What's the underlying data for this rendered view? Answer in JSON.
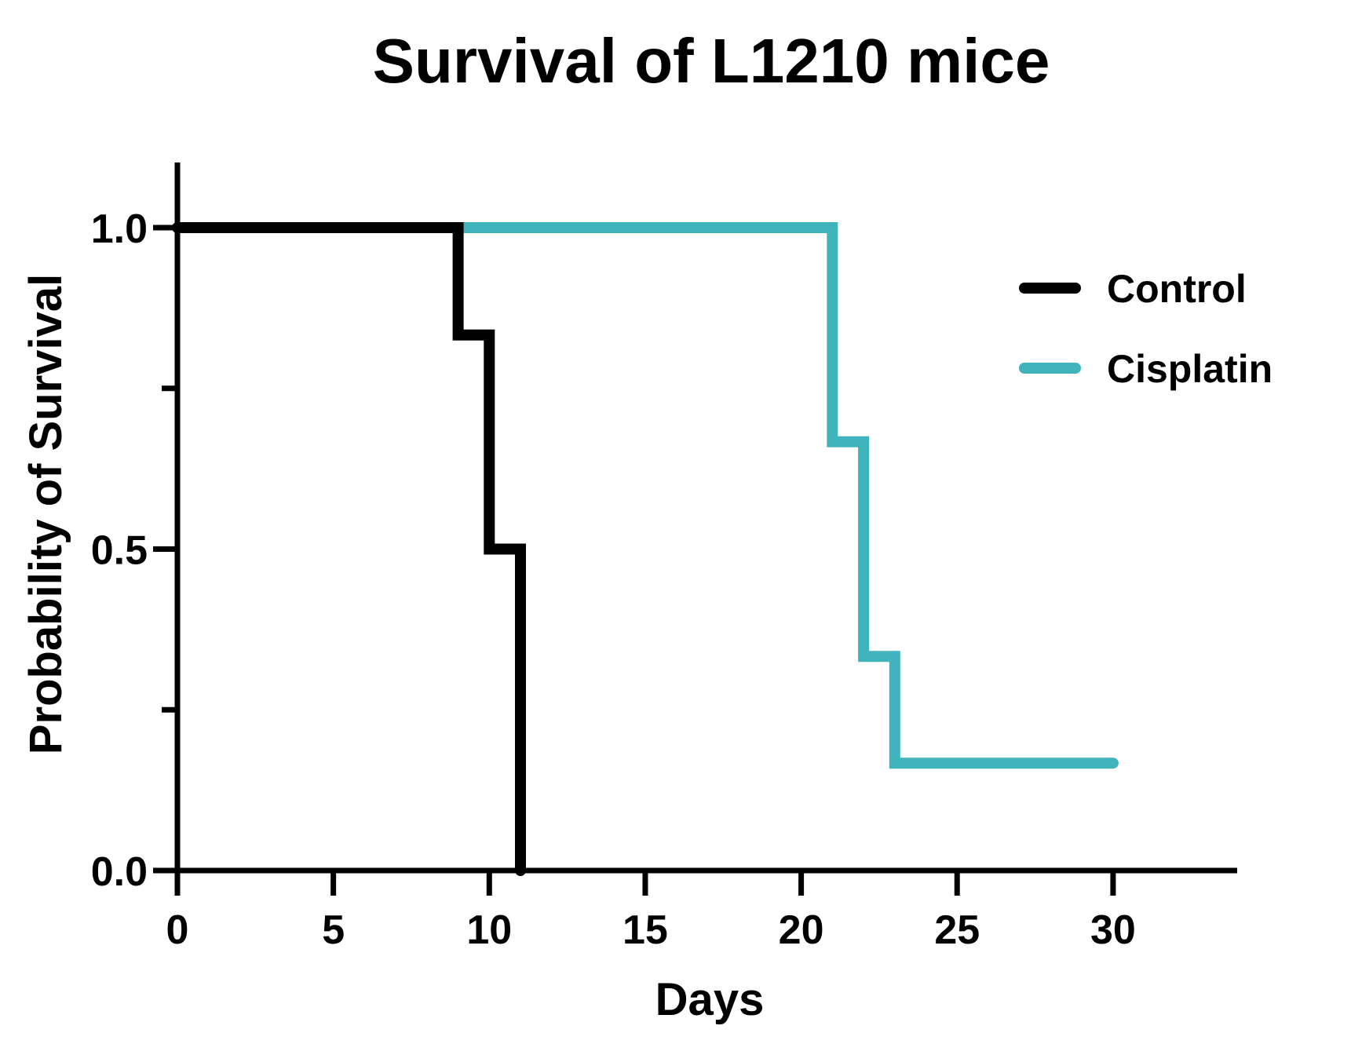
{
  "chart_data": {
    "type": "line",
    "subtype": "kaplan-meier-step",
    "title": "Survival of L1210 mice",
    "xlabel": "Days",
    "ylabel": "Probability of Survival",
    "xlim": [
      0,
      34
    ],
    "ylim": [
      0,
      1.1
    ],
    "x_ticks": [
      0,
      5,
      10,
      15,
      20,
      25,
      30
    ],
    "x_tick_labels": [
      "0",
      "5",
      "10",
      "15",
      "20",
      "25",
      "30"
    ],
    "y_ticks_major": [
      0.0,
      0.5,
      1.0
    ],
    "y_tick_labels": [
      "0.0",
      "0.5",
      "1.0"
    ],
    "y_ticks_minor": [
      0.25,
      0.75
    ],
    "grid": false,
    "legend_position": "top-right",
    "series": [
      {
        "name": "Control",
        "color": "#000000",
        "x": [
          0,
          9,
          9,
          10,
          10,
          11,
          11
        ],
        "y": [
          1.0,
          1.0,
          0.833,
          0.833,
          0.5,
          0.5,
          0.0
        ]
      },
      {
        "name": "Cisplatin",
        "color": "#3fb4bc",
        "x": [
          0,
          21,
          21,
          22,
          22,
          23,
          23,
          30
        ],
        "y": [
          1.0,
          1.0,
          0.667,
          0.667,
          0.333,
          0.333,
          0.167,
          0.167
        ]
      }
    ]
  }
}
